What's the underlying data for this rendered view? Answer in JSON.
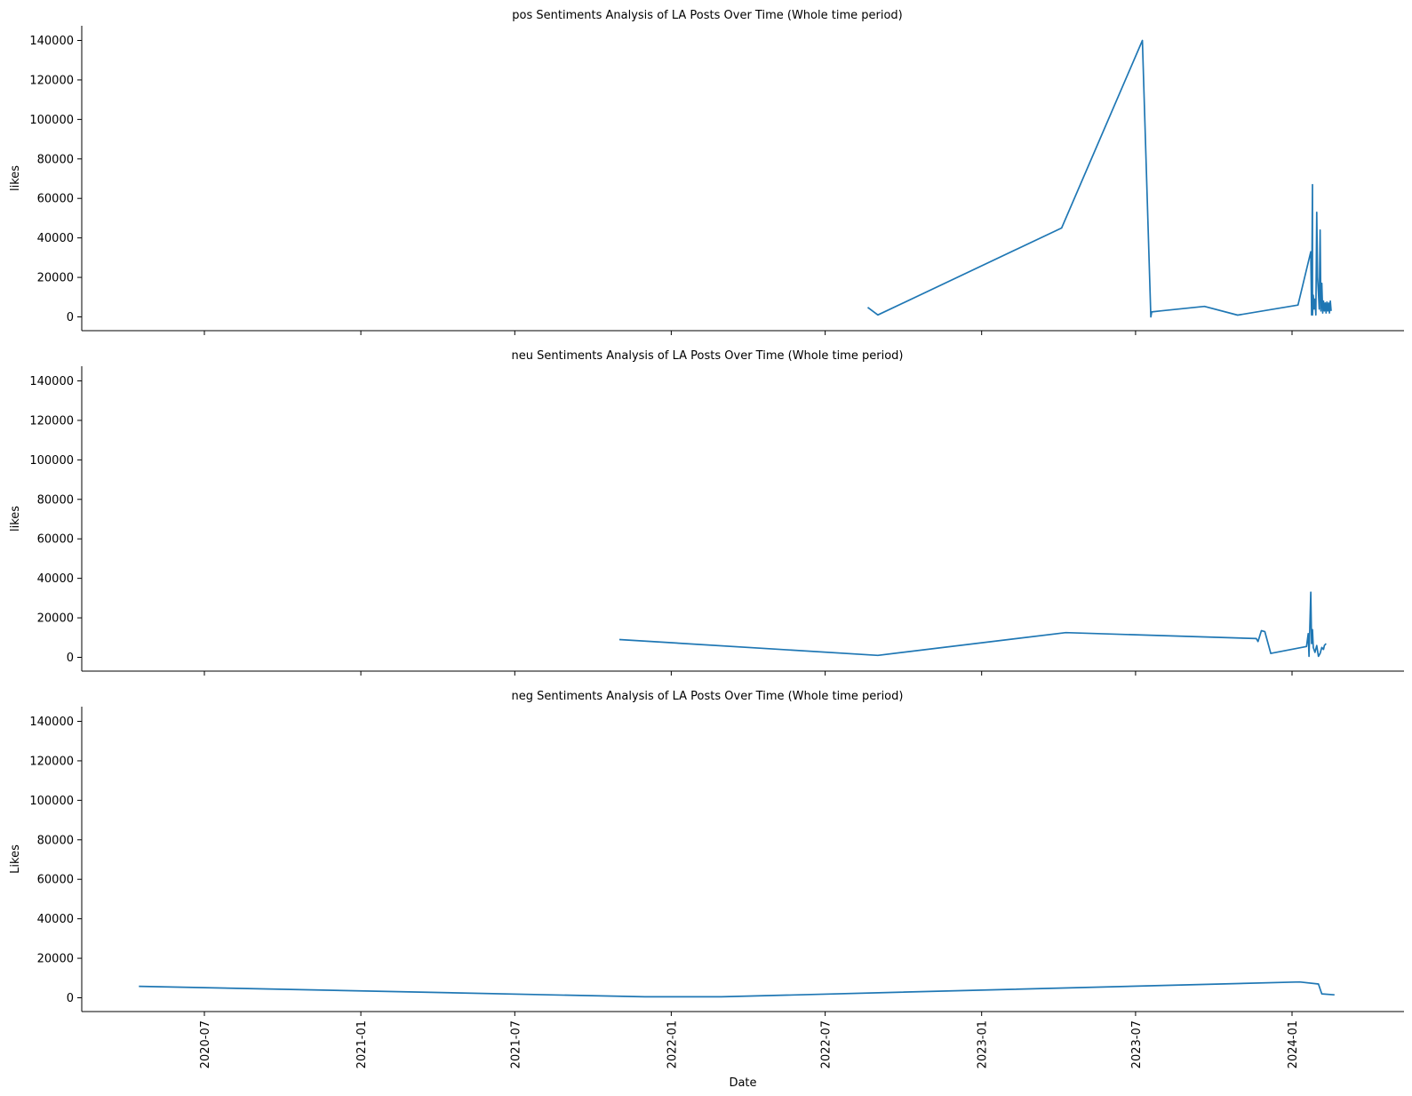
{
  "chart_data": [
    {
      "type": "line",
      "title": "pos Sentiments Analysis of LA Posts Over Time (Whole time period)",
      "ylabel": "likes",
      "xlabel": "",
      "ylim": [
        -7000,
        147000
      ],
      "yticks": [
        "0",
        "20000",
        "40000",
        "60000",
        "80000",
        "100000",
        "120000",
        "140000"
      ],
      "color": "#1f77b4",
      "series": [
        {
          "x": [
            "2022-08-20",
            "2022-09-01",
            "2023-04-05",
            "2023-07-09",
            "2023-07-19",
            "2023-07-20",
            "2023-07-30",
            "2023-09-20",
            "2023-10-29",
            "2024-01-08",
            "2024-01-23",
            "2024-01-24",
            "2024-01-25",
            "2024-01-25",
            "2024-01-26",
            "2024-01-27",
            "2024-01-28",
            "2024-01-29",
            "2024-01-30",
            "2024-01-31",
            "2024-02-01",
            "2024-02-02",
            "2024-02-03",
            "2024-02-04",
            "2024-02-05",
            "2024-02-06",
            "2024-02-07",
            "2024-02-08",
            "2024-02-09",
            "2024-02-10",
            "2024-02-11",
            "2024-02-12",
            "2024-02-13",
            "2024-02-14",
            "2024-02-15",
            "2024-02-16"
          ],
          "y": [
            4800,
            1000,
            45000,
            140000,
            0,
            2500,
            3000,
            5300,
            900,
            6000,
            33000,
            1000,
            67000,
            1000,
            11000,
            4000,
            9000,
            1000,
            53000,
            20000,
            12000,
            4000,
            44000,
            3000,
            17000,
            2000,
            8000,
            3000,
            7000,
            2000,
            7500,
            3000,
            7000,
            2000,
            8000,
            3000
          ]
        }
      ]
    },
    {
      "type": "line",
      "title": "neu Sentiments Analysis of LA Posts Over Time (Whole time period)",
      "ylabel": "likes",
      "xlabel": "",
      "ylim": [
        -7000,
        147000
      ],
      "yticks": [
        "0",
        "20000",
        "40000",
        "60000",
        "80000",
        "100000",
        "120000",
        "140000"
      ],
      "color": "#1f77b4",
      "series": [
        {
          "x": [
            "2021-11-01",
            "2022-09-01",
            "2023-04-10",
            "2023-11-20",
            "2023-11-22",
            "2023-11-26",
            "2023-11-30",
            "2023-12-07",
            "2024-01-18",
            "2024-01-20",
            "2024-01-21",
            "2024-01-23",
            "2024-01-24",
            "2024-01-25",
            "2024-01-26",
            "2024-01-28",
            "2024-01-30",
            "2024-02-01",
            "2024-02-03",
            "2024-02-05",
            "2024-02-07",
            "2024-02-08",
            "2024-02-10"
          ],
          "y": [
            9000,
            1000,
            12500,
            9500,
            8000,
            13500,
            13000,
            2000,
            5500,
            12000,
            500,
            33000,
            7000,
            14000,
            5000,
            2500,
            6000,
            500,
            2000,
            5000,
            4000,
            6000,
            7000
          ]
        }
      ]
    },
    {
      "type": "line",
      "title": "neg Sentiments Analysis of LA Posts Over Time (Whole time period)",
      "ylabel": "Likes",
      "xlabel": "Date",
      "ylim": [
        -7000,
        147000
      ],
      "yticks": [
        "0",
        "20000",
        "40000",
        "60000",
        "80000",
        "100000",
        "120000",
        "140000"
      ],
      "xticks": [
        "2020-07",
        "2021-01",
        "2021-07",
        "2022-01",
        "2022-07",
        "2023-01",
        "2023-07",
        "2024-01"
      ],
      "color": "#1f77b4",
      "series": [
        {
          "x": [
            "2020-04-15",
            "2021-12-01",
            "2022-03-01",
            "2024-01-10",
            "2024-02-01",
            "2024-02-05",
            "2024-02-20"
          ],
          "y": [
            5800,
            500,
            500,
            8000,
            7000,
            2000,
            1500
          ]
        }
      ]
    }
  ]
}
